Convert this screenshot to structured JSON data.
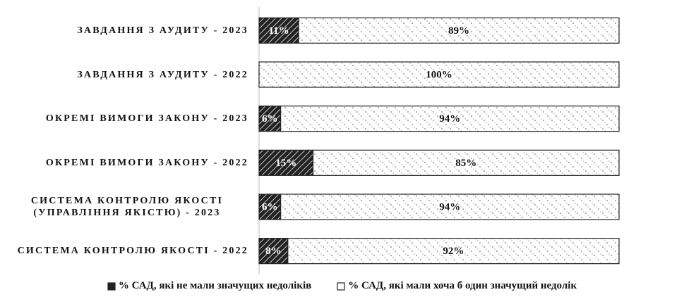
{
  "chart_data": {
    "type": "stacked-barh",
    "categories": [
      "ЗАВДАННЯ З АУДИТУ - 2023",
      "ЗАВДАННЯ З АУДИТУ - 2022",
      "ОКРЕМІ ВИМОГИ ЗАКОНУ - 2023",
      "ОКРЕМІ ВИМОГИ ЗАКОНУ - 2022",
      "СИСТЕМА КОНТРОЛЮ ЯКОСТІ (УПРАВЛІННЯ ЯКІСТЮ) - 2023",
      "СИСТЕМА КОНТРОЛЮ ЯКОСТІ - 2022"
    ],
    "series": [
      {
        "name": "% САД, які не мали значущих недоліків",
        "color": "#222222",
        "values": [
          11,
          0,
          6,
          15,
          6,
          8
        ],
        "value_labels": [
          "11%",
          null,
          "6%",
          "15%",
          "6%",
          "8%"
        ]
      },
      {
        "name": "% САД, які мали хоча б один значущий недолік",
        "color": "#ffffff",
        "values": [
          89,
          100,
          94,
          85,
          94,
          92
        ],
        "value_labels": [
          "89%",
          "100%",
          "94%",
          "85%",
          "94%",
          "92%"
        ]
      }
    ],
    "xlim": [
      0,
      100
    ],
    "legend": "bottom"
  }
}
